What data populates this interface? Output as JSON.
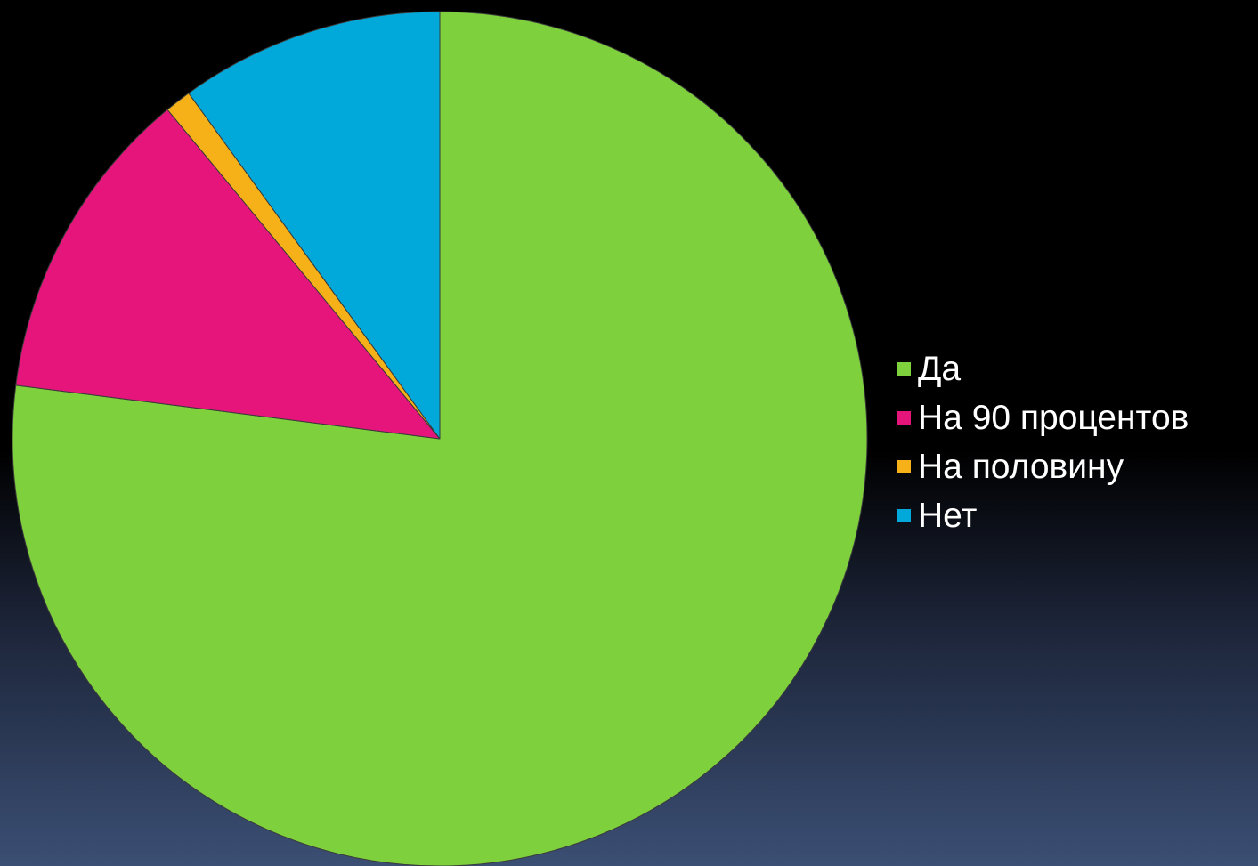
{
  "chart_data": {
    "type": "pie",
    "categories": [
      "Да",
      "На 90 процентов",
      "На половину",
      "Нет"
    ],
    "values": [
      77,
      12,
      1,
      10
    ],
    "colors": [
      "#7ed13c",
      "#e5157c",
      "#f6b018",
      "#00a9da"
    ],
    "start_angle": "12 o'clock",
    "direction": "clockwise",
    "legend_position": "right",
    "title": "",
    "data_labels": false
  }
}
